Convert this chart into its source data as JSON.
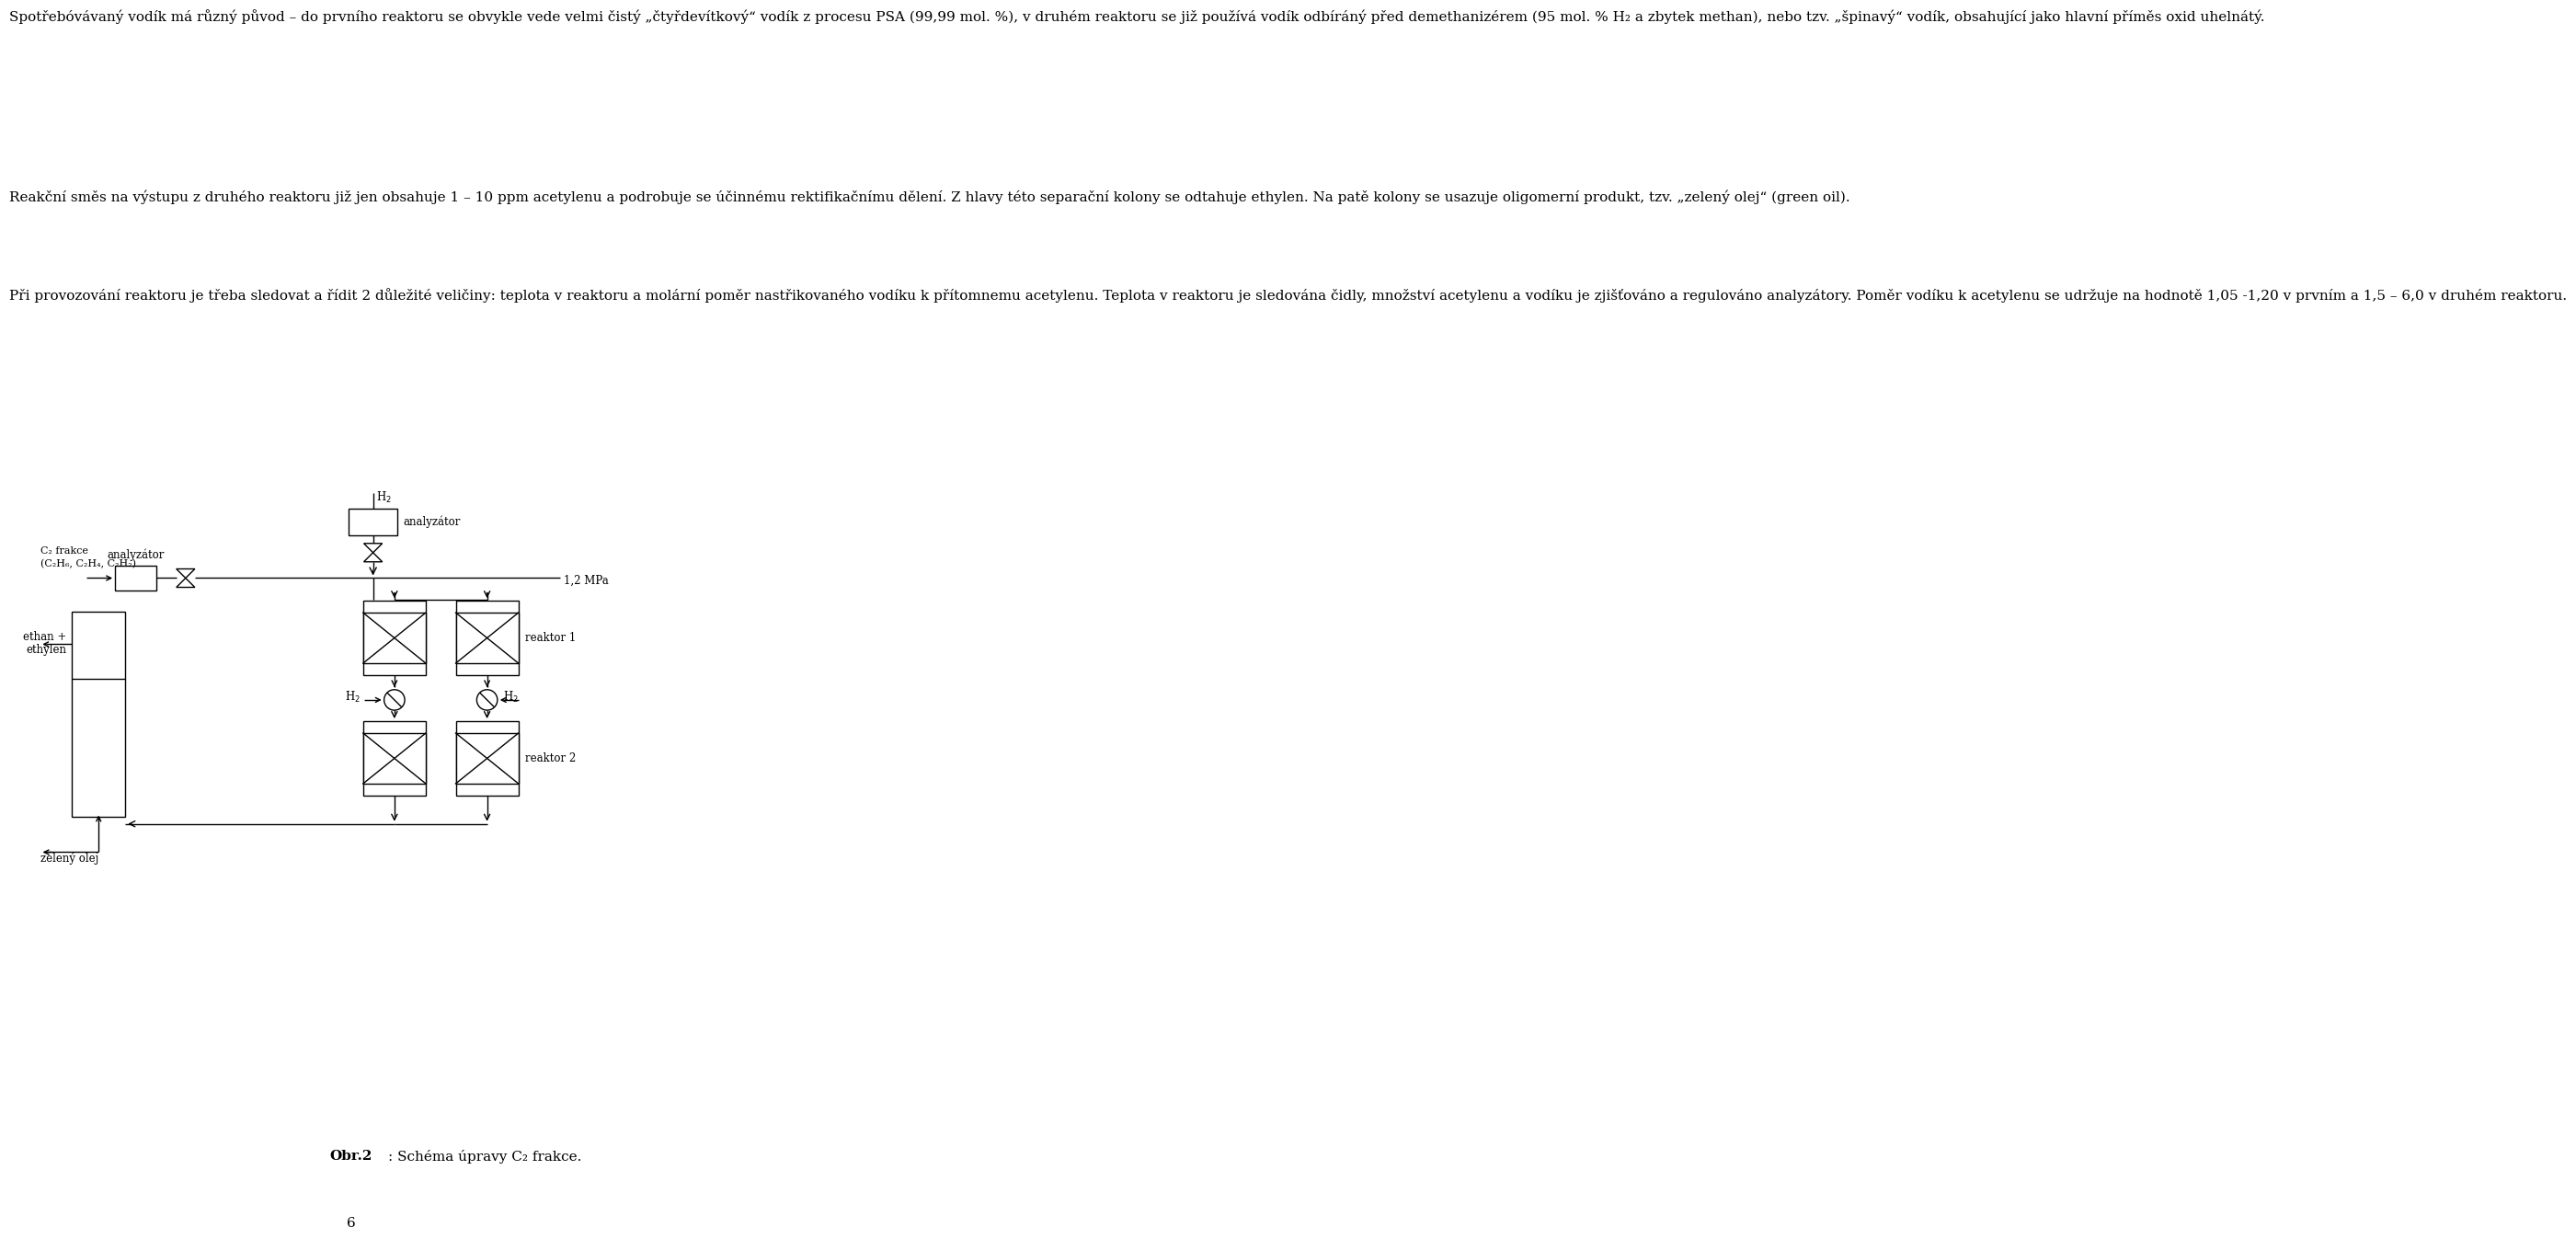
{
  "page_width": 9.6,
  "page_height": 13.72,
  "bg_color": "#ffffff",
  "text_color": "#000000",
  "para1": "Spotřebóvávaný vodík má různý původ – do prvního reaktoru se obvykle vede velmi čistý „čtyřdevítkový“ vodík z procesu PSA (99,99 mol. %), v druhém reaktoru se již používá vodík odbíráný před demethanizérem (95 mol. % H₂ a zbytek methan), nebo tzv. „špinavý“ vodík, obsahující jako hlavní příměs oxid uhelnátý.",
  "para2": "Reakční směs na výstupu z druhého reaktoru již jen obsahuje 1 – 10 ppm acetylenu a podrobuje se účinnému rektifikačnímu dělení. Z hlavy této separační kolony se odtahuje ethylen. Na patě kolony se usazuje oligomerní produkt, tzv. „zelený olej“ (green oil).",
  "para3": "Při provozování reaktoru je třeba sledovat a řídit 2 důležité veličiny: teplota v reaktoru a molární poměr nastřikovaného vodíku k přítomnemu acetylenu. Teplota v reaktoru je sledována čidly, množství acetylenu a vodíku je zjišťováno a regulováno analyzátory. Poměr vodíku k acetylenu se udržuje na hodnotě 1,05 -1,20 v prvním a 1,5 – 6,0 v druhém reaktoru.",
  "caption_bold": "Obr.2",
  "caption_normal": ": Schéma úpravy C₂ frakce.",
  "page_num": "6"
}
